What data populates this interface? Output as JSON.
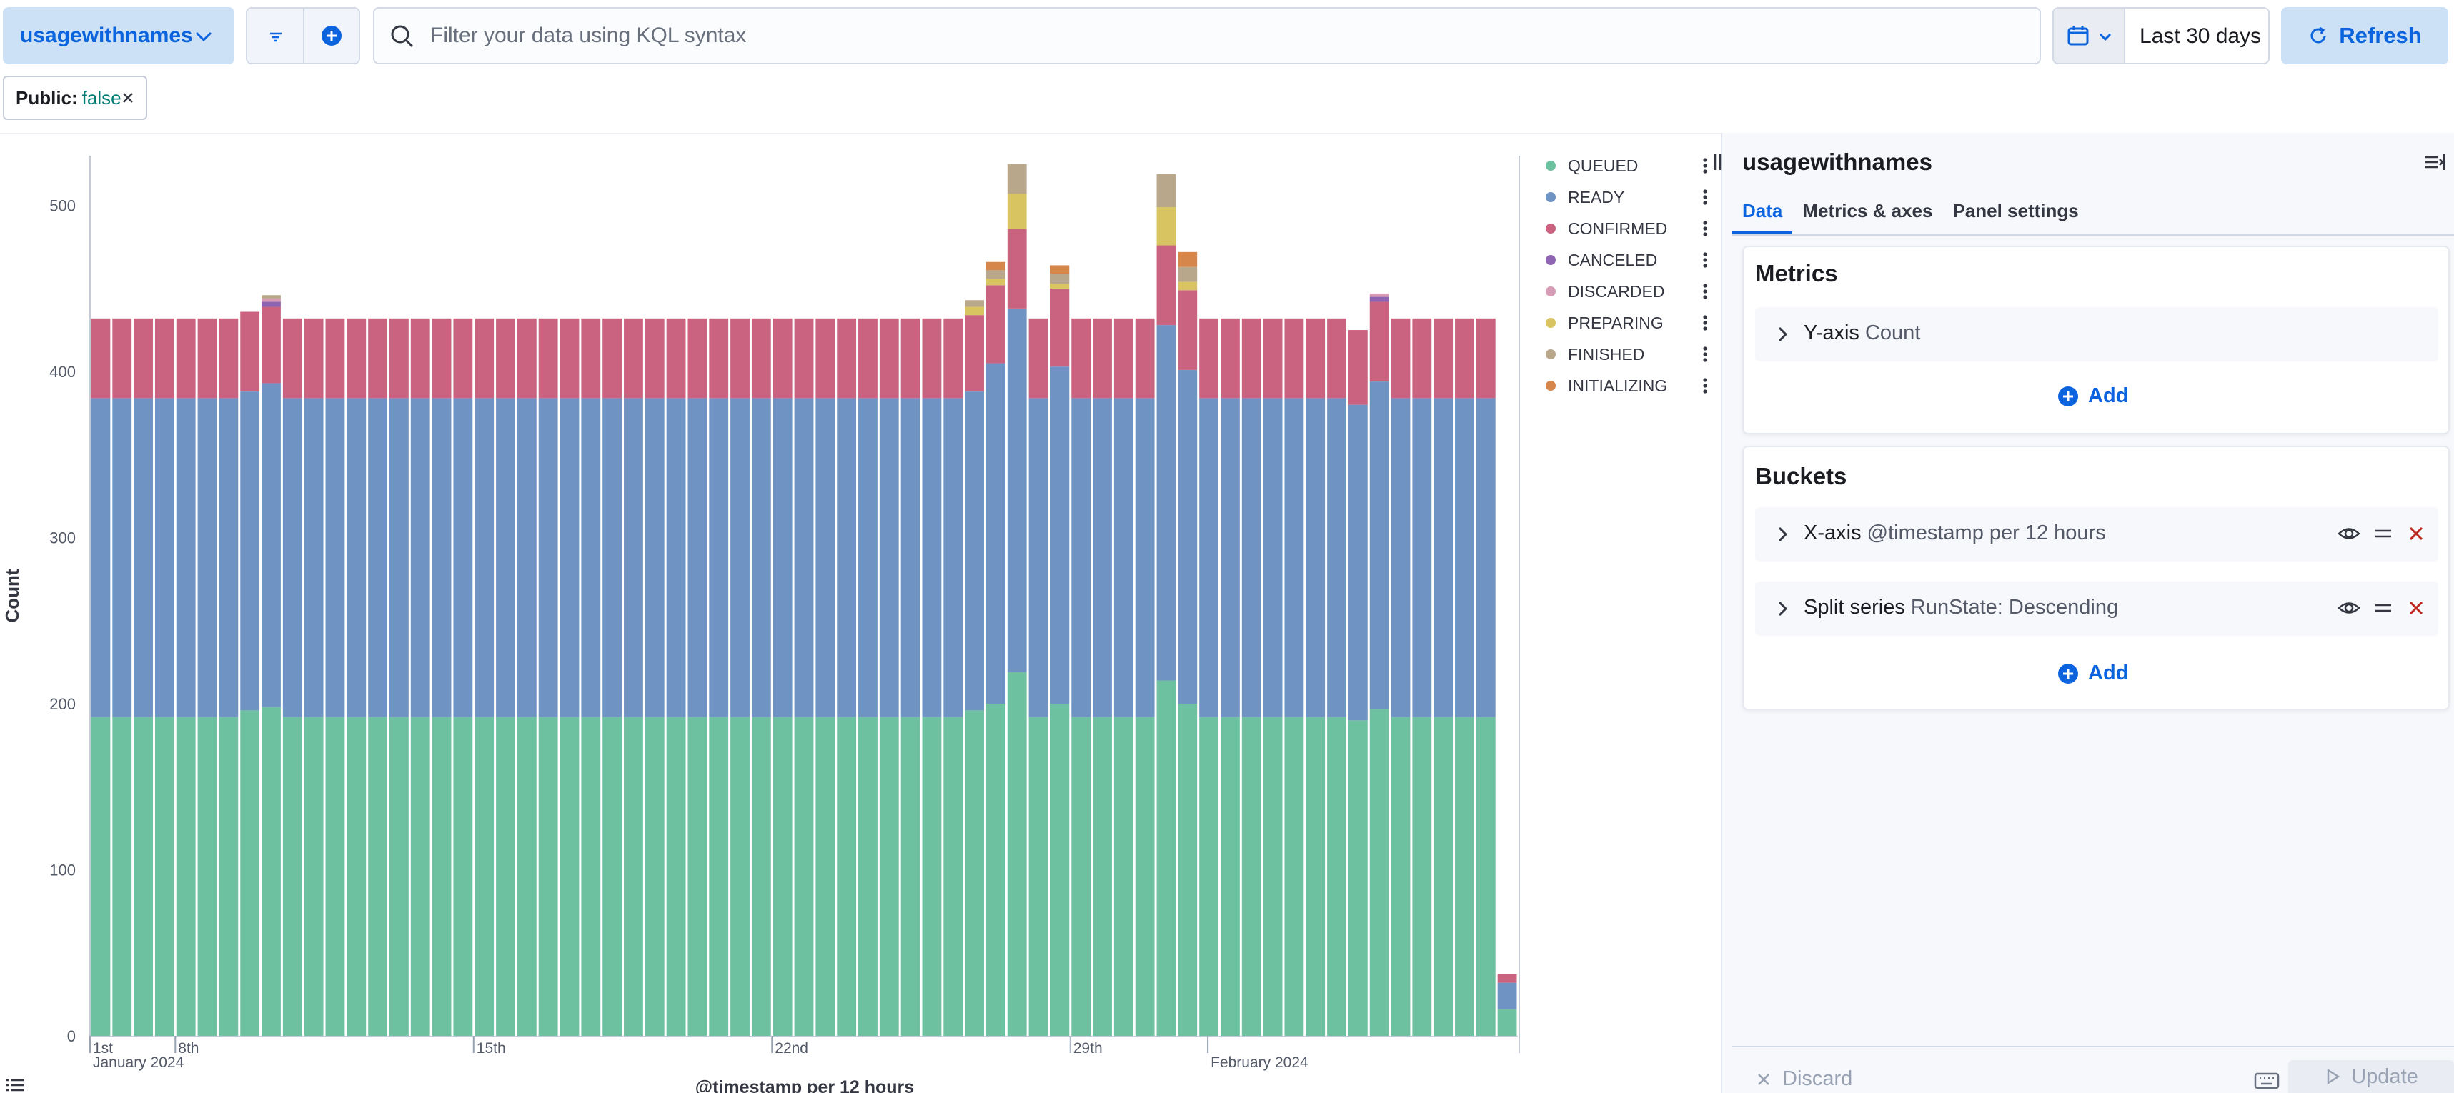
{
  "topbar": {
    "index_pattern": "usagewithnames",
    "query_placeholder": "Filter your data using KQL syntax",
    "time_range": "Last 30 days",
    "refresh_label": "Refresh"
  },
  "filter_pill": {
    "key": "Public:",
    "value": "false"
  },
  "editor": {
    "title": "usagewithnames",
    "tabs": [
      {
        "label": "Data",
        "active": true
      },
      {
        "label": "Metrics & axes",
        "active": false
      },
      {
        "label": "Panel settings",
        "active": false
      }
    ],
    "metrics": {
      "title": "Metrics",
      "row": {
        "name": "Y-axis",
        "desc": "Count"
      },
      "add_label": "Add"
    },
    "buckets": {
      "title": "Buckets",
      "rows": [
        {
          "name": "X-axis",
          "desc": "@timestamp per 12 hours"
        },
        {
          "name": "Split series",
          "desc": "RunState: Descending"
        }
      ],
      "add_label": "Add"
    },
    "discard_label": "Discard",
    "update_label": "Update"
  },
  "colors": {
    "accent": "#0b64dd",
    "danger": "#bd271e"
  },
  "chart_data": {
    "type": "bar",
    "stacked": true,
    "ylabel": "Count",
    "xlabel": "@timestamp per 12 hours",
    "ylim": [
      0,
      530
    ],
    "yticks": [
      0,
      100,
      200,
      300,
      400,
      500
    ],
    "xticks": [
      {
        "label": "1st",
        "sub": "January 2024"
      },
      {
        "label": "8th",
        "sub": ""
      },
      {
        "label": "15th",
        "sub": ""
      },
      {
        "label": "22nd",
        "sub": ""
      },
      {
        "label": "29th",
        "sub": ""
      },
      {
        "label": "",
        "sub": "February 2024"
      }
    ],
    "grid": false,
    "legend_position": "right",
    "series": [
      {
        "name": "QUEUED",
        "color": "#6dc0a0",
        "values": [
          192,
          192,
          192,
          192,
          192,
          192,
          192,
          196,
          198,
          192,
          192,
          192,
          192,
          192,
          192,
          192,
          192,
          192,
          192,
          192,
          192,
          192,
          192,
          192,
          192,
          192,
          192,
          192,
          192,
          192,
          192,
          192,
          192,
          192,
          192,
          192,
          192,
          192,
          192,
          192,
          192,
          196,
          200,
          219,
          192,
          200,
          192,
          192,
          192,
          192,
          214,
          200,
          192,
          192,
          192,
          192,
          192,
          192,
          192,
          190,
          197,
          192,
          192,
          192,
          192,
          192,
          16
        ]
      },
      {
        "name": "READY",
        "color": "#6f94c3",
        "values": [
          192,
          192,
          192,
          192,
          192,
          192,
          192,
          192,
          195,
          192,
          192,
          192,
          192,
          192,
          192,
          192,
          192,
          192,
          192,
          192,
          192,
          192,
          192,
          192,
          192,
          192,
          192,
          192,
          192,
          192,
          192,
          192,
          192,
          192,
          192,
          192,
          192,
          192,
          192,
          192,
          192,
          192,
          205,
          219,
          192,
          203,
          192,
          192,
          192,
          192,
          214,
          201,
          192,
          192,
          192,
          192,
          192,
          192,
          192,
          190,
          197,
          192,
          192,
          192,
          192,
          192,
          16
        ]
      },
      {
        "name": "CONFIRMED",
        "color": "#c9637f",
        "values": [
          48,
          48,
          48,
          48,
          48,
          48,
          48,
          48,
          46,
          48,
          48,
          48,
          48,
          48,
          48,
          48,
          48,
          48,
          48,
          48,
          48,
          48,
          48,
          48,
          48,
          48,
          48,
          48,
          48,
          48,
          48,
          48,
          48,
          48,
          48,
          48,
          48,
          48,
          48,
          48,
          48,
          46,
          47,
          48,
          48,
          47,
          48,
          48,
          48,
          48,
          48,
          48,
          48,
          48,
          48,
          48,
          48,
          48,
          48,
          45,
          48,
          48,
          48,
          48,
          48,
          48,
          5
        ]
      },
      {
        "name": "CANCELED",
        "color": "#8d65b2",
        "values": [
          0,
          0,
          0,
          0,
          0,
          0,
          0,
          0,
          3,
          0,
          0,
          0,
          0,
          0,
          0,
          0,
          0,
          0,
          0,
          0,
          0,
          0,
          0,
          0,
          0,
          0,
          0,
          0,
          0,
          0,
          0,
          0,
          0,
          0,
          0,
          0,
          0,
          0,
          0,
          0,
          0,
          0,
          0,
          0,
          0,
          0,
          0,
          0,
          0,
          0,
          0,
          0,
          0,
          0,
          0,
          0,
          0,
          0,
          0,
          0,
          3,
          0,
          0,
          0,
          0,
          0,
          0
        ]
      },
      {
        "name": "DISCARDED",
        "color": "#d69bb5",
        "values": [
          0,
          0,
          0,
          0,
          0,
          0,
          0,
          0,
          2,
          0,
          0,
          0,
          0,
          0,
          0,
          0,
          0,
          0,
          0,
          0,
          0,
          0,
          0,
          0,
          0,
          0,
          0,
          0,
          0,
          0,
          0,
          0,
          0,
          0,
          0,
          0,
          0,
          0,
          0,
          0,
          0,
          0,
          0,
          0,
          0,
          0,
          0,
          0,
          0,
          0,
          0,
          0,
          0,
          0,
          0,
          0,
          0,
          0,
          0,
          0,
          2,
          0,
          0,
          0,
          0,
          0,
          0
        ]
      },
      {
        "name": "PREPARING",
        "color": "#d8c562",
        "values": [
          0,
          0,
          0,
          0,
          0,
          0,
          0,
          0,
          0,
          0,
          0,
          0,
          0,
          0,
          0,
          0,
          0,
          0,
          0,
          0,
          0,
          0,
          0,
          0,
          0,
          0,
          0,
          0,
          0,
          0,
          0,
          0,
          0,
          0,
          0,
          0,
          0,
          0,
          0,
          0,
          0,
          5,
          4,
          21,
          0,
          3,
          0,
          0,
          0,
          0,
          23,
          5,
          0,
          0,
          0,
          0,
          0,
          0,
          0,
          0,
          0,
          0,
          0,
          0,
          0,
          0,
          0
        ]
      },
      {
        "name": "FINISHED",
        "color": "#b8a78b",
        "values": [
          0,
          0,
          0,
          0,
          0,
          0,
          0,
          0,
          2,
          0,
          0,
          0,
          0,
          0,
          0,
          0,
          0,
          0,
          0,
          0,
          0,
          0,
          0,
          0,
          0,
          0,
          0,
          0,
          0,
          0,
          0,
          0,
          0,
          0,
          0,
          0,
          0,
          0,
          0,
          0,
          0,
          4,
          5,
          18,
          0,
          6,
          0,
          0,
          0,
          0,
          20,
          9,
          0,
          0,
          0,
          0,
          0,
          0,
          0,
          0,
          0,
          0,
          0,
          0,
          0,
          0,
          0
        ]
      },
      {
        "name": "INITIALIZING",
        "color": "#d6864a",
        "values": [
          0,
          0,
          0,
          0,
          0,
          0,
          0,
          0,
          0,
          0,
          0,
          0,
          0,
          0,
          0,
          0,
          0,
          0,
          0,
          0,
          0,
          0,
          0,
          0,
          0,
          0,
          0,
          0,
          0,
          0,
          0,
          0,
          0,
          0,
          0,
          0,
          0,
          0,
          0,
          0,
          0,
          0,
          5,
          0,
          0,
          5,
          0,
          0,
          0,
          0,
          0,
          9,
          0,
          0,
          0,
          0,
          0,
          0,
          0,
          0,
          0,
          0,
          0,
          0,
          0,
          0,
          0
        ]
      }
    ]
  }
}
